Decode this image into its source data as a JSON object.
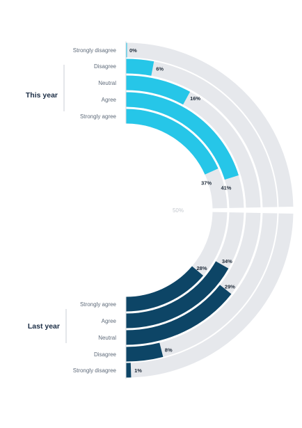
{
  "chart_data": {
    "type": "radial-bar",
    "max_label": "50%",
    "max_value": 50,
    "groups": [
      {
        "name": "This year",
        "color": "#26c6e8",
        "categories": [
          "Strongly disagree",
          "Disagree",
          "Neutral",
          "Agree",
          "Strongly agree"
        ],
        "values": [
          0,
          6,
          16,
          41,
          37
        ],
        "value_labels": [
          "0%",
          "6%",
          "16%",
          "41%",
          "37%"
        ]
      },
      {
        "name": "Last year",
        "color": "#0d4566",
        "categories": [
          "Strongly agree",
          "Agree",
          "Neutral",
          "Disagree",
          "Strongly disagree"
        ],
        "values": [
          28,
          34,
          29,
          8,
          1
        ],
        "value_labels": [
          "28%",
          "34%",
          "29%",
          "8%",
          "1%"
        ]
      }
    ],
    "track_color": "#e6e8ec"
  }
}
